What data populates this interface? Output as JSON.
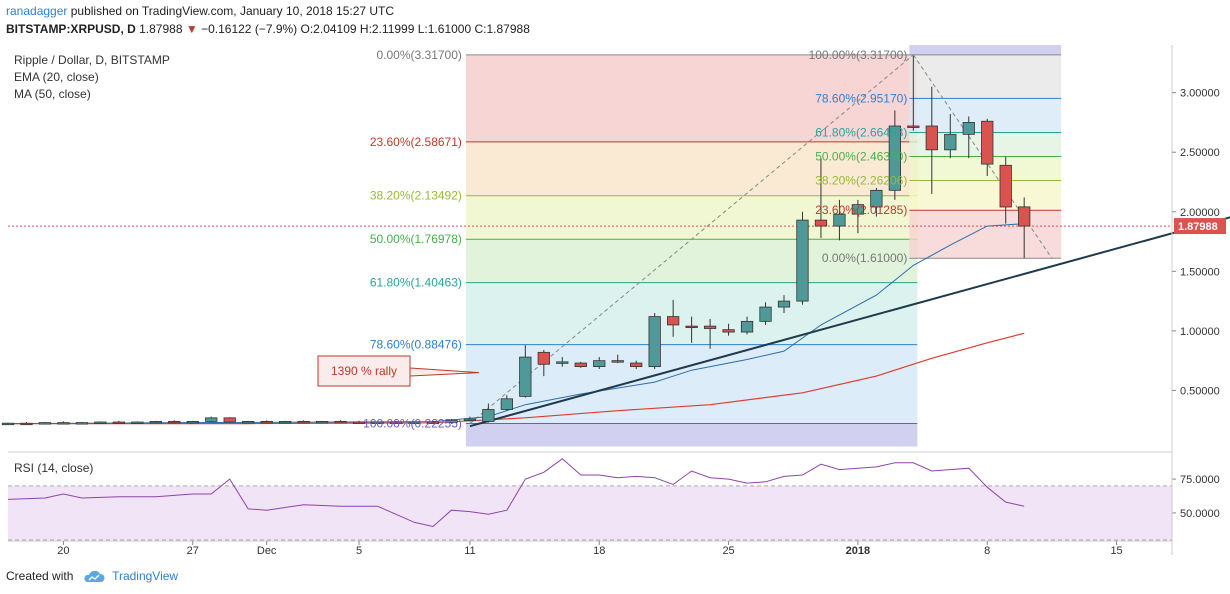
{
  "header": {
    "author": "ranadagger",
    "published": "published on TradingView.com, January 10, 2018 15:27 UTC",
    "symbol": "BITSTAMP:XRPUSD, D",
    "last": "1.87988",
    "change": "−0.16122 (−7.9%)",
    "open_label": "O:2.04109",
    "high_label": "H:2.11999",
    "low_label": "L:1.61000",
    "close_label": "C:1.87988"
  },
  "legend": {
    "title": "Ripple / Dollar, D, BITSTAMP",
    "ema": "EMA (20, close)",
    "ma": "MA (50, close)",
    "rsi": "RSI (14, close)"
  },
  "annotation": {
    "text": "1390 % rally"
  },
  "price_label": "1.87988",
  "footer": {
    "created": "Created with",
    "brand": "TradingView"
  },
  "colors": {
    "up": "#4f9a98",
    "down": "#d9534f",
    "ema": "#2b6cb0",
    "ma": "#e03c31",
    "trendline": "#1f3a4d",
    "rsi": "#8e44ad"
  },
  "chart_data": [
    {
      "type": "candlestick",
      "title": "Ripple / Dollar, D, BITSTAMP",
      "ylim": [
        0,
        3.4
      ],
      "y_ticks": [
        0.5,
        1.0,
        1.5,
        2.0,
        2.5,
        3.0
      ],
      "y_tick_labels": [
        "0.50000",
        "1.00000",
        "1.50000",
        "2.00000",
        "2.50000",
        "3.00000"
      ],
      "x_tick_labels": [
        "20",
        "27",
        "Dec",
        "5",
        "11",
        "18",
        "25",
        "2018",
        "8",
        "15"
      ],
      "x_tick_days": [
        0,
        7,
        11,
        16,
        22,
        29,
        36,
        43,
        50,
        57
      ],
      "x_range_days": [
        -3,
        60
      ],
      "day_zero": "Nov 20",
      "candles": [
        {
          "d": -3,
          "o": 0.22,
          "h": 0.23,
          "l": 0.21,
          "c": 0.225
        },
        {
          "d": -2,
          "o": 0.225,
          "h": 0.235,
          "l": 0.215,
          "c": 0.22
        },
        {
          "d": -1,
          "o": 0.22,
          "h": 0.235,
          "l": 0.215,
          "c": 0.23
        },
        {
          "d": 0,
          "o": 0.23,
          "h": 0.24,
          "l": 0.22,
          "c": 0.225
        },
        {
          "d": 1,
          "o": 0.225,
          "h": 0.235,
          "l": 0.215,
          "c": 0.23
        },
        {
          "d": 2,
          "o": 0.23,
          "h": 0.24,
          "l": 0.22,
          "c": 0.235
        },
        {
          "d": 3,
          "o": 0.235,
          "h": 0.245,
          "l": 0.225,
          "c": 0.23
        },
        {
          "d": 4,
          "o": 0.23,
          "h": 0.24,
          "l": 0.22,
          "c": 0.235
        },
        {
          "d": 5,
          "o": 0.235,
          "h": 0.245,
          "l": 0.225,
          "c": 0.24
        },
        {
          "d": 6,
          "o": 0.24,
          "h": 0.25,
          "l": 0.23,
          "c": 0.235
        },
        {
          "d": 7,
          "o": 0.235,
          "h": 0.245,
          "l": 0.225,
          "c": 0.24
        },
        {
          "d": 8,
          "o": 0.24,
          "h": 0.28,
          "l": 0.235,
          "c": 0.27
        },
        {
          "d": 9,
          "o": 0.27,
          "h": 0.275,
          "l": 0.23,
          "c": 0.235
        },
        {
          "d": 10,
          "o": 0.235,
          "h": 0.245,
          "l": 0.225,
          "c": 0.24
        },
        {
          "d": 11,
          "o": 0.24,
          "h": 0.25,
          "l": 0.23,
          "c": 0.235
        },
        {
          "d": 12,
          "o": 0.235,
          "h": 0.245,
          "l": 0.225,
          "c": 0.24
        },
        {
          "d": 13,
          "o": 0.24,
          "h": 0.25,
          "l": 0.23,
          "c": 0.235
        },
        {
          "d": 14,
          "o": 0.235,
          "h": 0.245,
          "l": 0.225,
          "c": 0.24
        },
        {
          "d": 15,
          "o": 0.24,
          "h": 0.25,
          "l": 0.23,
          "c": 0.235
        },
        {
          "d": 16,
          "o": 0.235,
          "h": 0.245,
          "l": 0.225,
          "c": 0.23
        },
        {
          "d": 17,
          "o": 0.23,
          "h": 0.24,
          "l": 0.22,
          "c": 0.235
        },
        {
          "d": 18,
          "o": 0.235,
          "h": 0.245,
          "l": 0.225,
          "c": 0.23
        },
        {
          "d": 19,
          "o": 0.23,
          "h": 0.24,
          "l": 0.22,
          "c": 0.235
        },
        {
          "d": 20,
          "o": 0.235,
          "h": 0.245,
          "l": 0.225,
          "c": 0.23
        },
        {
          "d": 21,
          "o": 0.23,
          "h": 0.26,
          "l": 0.22,
          "c": 0.25
        },
        {
          "d": 22,
          "o": 0.25,
          "h": 0.28,
          "l": 0.24,
          "c": 0.26
        },
        {
          "d": 23,
          "o": 0.24,
          "h": 0.39,
          "l": 0.23,
          "c": 0.34
        },
        {
          "d": 24,
          "o": 0.34,
          "h": 0.46,
          "l": 0.33,
          "c": 0.43
        },
        {
          "d": 25,
          "o": 0.45,
          "h": 0.88,
          "l": 0.44,
          "c": 0.78
        },
        {
          "d": 26,
          "o": 0.82,
          "h": 0.84,
          "l": 0.62,
          "c": 0.72
        },
        {
          "d": 27,
          "o": 0.73,
          "h": 0.78,
          "l": 0.7,
          "c": 0.74
        },
        {
          "d": 28,
          "o": 0.73,
          "h": 0.74,
          "l": 0.69,
          "c": 0.7
        },
        {
          "d": 29,
          "o": 0.7,
          "h": 0.78,
          "l": 0.68,
          "c": 0.75
        },
        {
          "d": 30,
          "o": 0.75,
          "h": 0.8,
          "l": 0.73,
          "c": 0.74
        },
        {
          "d": 31,
          "o": 0.73,
          "h": 0.75,
          "l": 0.68,
          "c": 0.7
        },
        {
          "d": 32,
          "o": 0.7,
          "h": 1.15,
          "l": 0.68,
          "c": 1.12
        },
        {
          "d": 33,
          "o": 1.12,
          "h": 1.26,
          "l": 0.95,
          "c": 1.05
        },
        {
          "d": 34,
          "o": 1.04,
          "h": 1.12,
          "l": 0.9,
          "c": 1.03
        },
        {
          "d": 35,
          "o": 1.04,
          "h": 1.1,
          "l": 0.85,
          "c": 1.02
        },
        {
          "d": 36,
          "o": 1.01,
          "h": 1.06,
          "l": 0.96,
          "c": 0.99
        },
        {
          "d": 37,
          "o": 0.99,
          "h": 1.12,
          "l": 0.97,
          "c": 1.08
        },
        {
          "d": 38,
          "o": 1.08,
          "h": 1.24,
          "l": 1.05,
          "c": 1.2
        },
        {
          "d": 39,
          "o": 1.2,
          "h": 1.3,
          "l": 1.15,
          "c": 1.25
        },
        {
          "d": 40,
          "o": 1.25,
          "h": 2.0,
          "l": 1.22,
          "c": 1.93
        },
        {
          "d": 41,
          "o": 1.93,
          "h": 2.45,
          "l": 1.78,
          "c": 1.88
        },
        {
          "d": 42,
          "o": 1.88,
          "h": 2.1,
          "l": 1.76,
          "c": 1.98
        },
        {
          "d": 43,
          "o": 1.98,
          "h": 2.1,
          "l": 1.82,
          "c": 2.06
        },
        {
          "d": 44,
          "o": 2.04,
          "h": 2.2,
          "l": 1.96,
          "c": 2.18
        },
        {
          "d": 45,
          "o": 2.18,
          "h": 2.85,
          "l": 2.1,
          "c": 2.72
        },
        {
          "d": 46,
          "o": 2.72,
          "h": 3.31,
          "l": 2.68,
          "c": 2.71
        },
        {
          "d": 47,
          "o": 2.72,
          "h": 3.05,
          "l": 2.15,
          "c": 2.52
        },
        {
          "d": 48,
          "o": 2.52,
          "h": 2.82,
          "l": 2.45,
          "c": 2.65
        },
        {
          "d": 49,
          "o": 2.65,
          "h": 2.8,
          "l": 2.45,
          "c": 2.75
        },
        {
          "d": 50,
          "o": 2.76,
          "h": 2.78,
          "l": 2.3,
          "c": 2.4
        },
        {
          "d": 51,
          "o": 2.39,
          "h": 2.46,
          "l": 1.9,
          "c": 2.04
        },
        {
          "d": 52,
          "o": 2.04109,
          "h": 2.11999,
          "l": 1.61,
          "c": 1.87988
        }
      ],
      "ema20": [
        [
          -3,
          0.222
        ],
        [
          5,
          0.228
        ],
        [
          10,
          0.232
        ],
        [
          15,
          0.235
        ],
        [
          20,
          0.238
        ],
        [
          23,
          0.28
        ],
        [
          25,
          0.38
        ],
        [
          28,
          0.47
        ],
        [
          32,
          0.57
        ],
        [
          34,
          0.67
        ],
        [
          37,
          0.76
        ],
        [
          39,
          0.83
        ],
        [
          41,
          1.05
        ],
        [
          44,
          1.3
        ],
        [
          46,
          1.55
        ],
        [
          48,
          1.72
        ],
        [
          50,
          1.88
        ],
        [
          52,
          1.9
        ]
      ],
      "ma50": [
        [
          -3,
          0.222
        ],
        [
          10,
          0.222
        ],
        [
          20,
          0.228
        ],
        [
          25,
          0.27
        ],
        [
          30,
          0.33
        ],
        [
          35,
          0.38
        ],
        [
          40,
          0.48
        ],
        [
          44,
          0.62
        ],
        [
          47,
          0.77
        ],
        [
          50,
          0.9
        ],
        [
          52,
          0.98
        ]
      ],
      "trendline": [
        [
          22,
          0.2
        ],
        [
          68,
          2.16
        ]
      ],
      "last_price_line": 1.87988
    },
    {
      "type": "fibonacci",
      "retracements": [
        {
          "label": "0.00%(3.31700)",
          "pct": "0.00%",
          "value": 3.317
        },
        {
          "label": "23.60%(2.58671)",
          "pct": "23.60%",
          "value": 2.58671
        },
        {
          "label": "38.20%(2.13492)",
          "pct": "38.20%",
          "value": 2.13492
        },
        {
          "label": "50.00%(1.76978)",
          "pct": "50.00%",
          "value": 1.76978
        },
        {
          "label": "61.80%(1.40463)",
          "pct": "61.80%",
          "value": 1.40463
        },
        {
          "label": "78.60%(0.88476)",
          "pct": "78.60%",
          "value": 0.88476
        },
        {
          "label": "100.00%(0.22255)",
          "pct": "100.00%",
          "value": 0.22255
        }
      ],
      "retracement_days": [
        22,
        46
      ],
      "retracement2": [
        {
          "label": "100.00%(3.31700)",
          "pct": "100.00%",
          "value": 3.317
        },
        {
          "label": "78.60%(2.95170)",
          "pct": "78.60%",
          "value": 2.9517
        },
        {
          "label": "61.80%(2.66493)",
          "pct": "61.80%",
          "value": 2.66493
        },
        {
          "label": "50.00%(2.46350)",
          "pct": "50.00%",
          "value": 2.4635
        },
        {
          "label": "38.20%(2.26206)",
          "pct": "38.20%",
          "value": 2.26206
        },
        {
          "label": "23.60%(2.01285)",
          "pct": "23.60%",
          "value": 2.01285
        },
        {
          "label": "0.00%(1.61000)",
          "pct": "0.00%",
          "value": 1.61
        }
      ],
      "retracement2_days": [
        46,
        54
      ]
    },
    {
      "type": "line",
      "title": "RSI (14, close)",
      "ylim": [
        30,
        95
      ],
      "y_ticks": [
        50,
        75
      ],
      "y_tick_labels": [
        "50.0000",
        "75.0000"
      ],
      "band": [
        30,
        70
      ],
      "x": [
        -3,
        -1,
        0,
        1,
        3,
        5,
        7,
        8,
        9,
        10,
        11,
        13,
        15,
        16,
        17,
        18,
        19,
        20,
        21,
        22,
        23,
        24,
        25,
        26,
        27,
        28,
        29,
        30,
        31,
        32,
        33,
        34,
        35,
        36,
        37,
        38,
        39,
        40,
        41,
        42,
        43,
        44,
        45,
        46,
        47,
        48,
        49,
        50,
        51,
        52
      ],
      "values": [
        60,
        61,
        64,
        61,
        62,
        62,
        64,
        64,
        75,
        53,
        52,
        56,
        55,
        55,
        55,
        49,
        43,
        40,
        52,
        51,
        49,
        52,
        75,
        80,
        90,
        78,
        78,
        76,
        77,
        76,
        71,
        81,
        76,
        75,
        72,
        73,
        77,
        78,
        86,
        82,
        83,
        84,
        87,
        87,
        81,
        82,
        83,
        69,
        58,
        55
      ]
    }
  ]
}
